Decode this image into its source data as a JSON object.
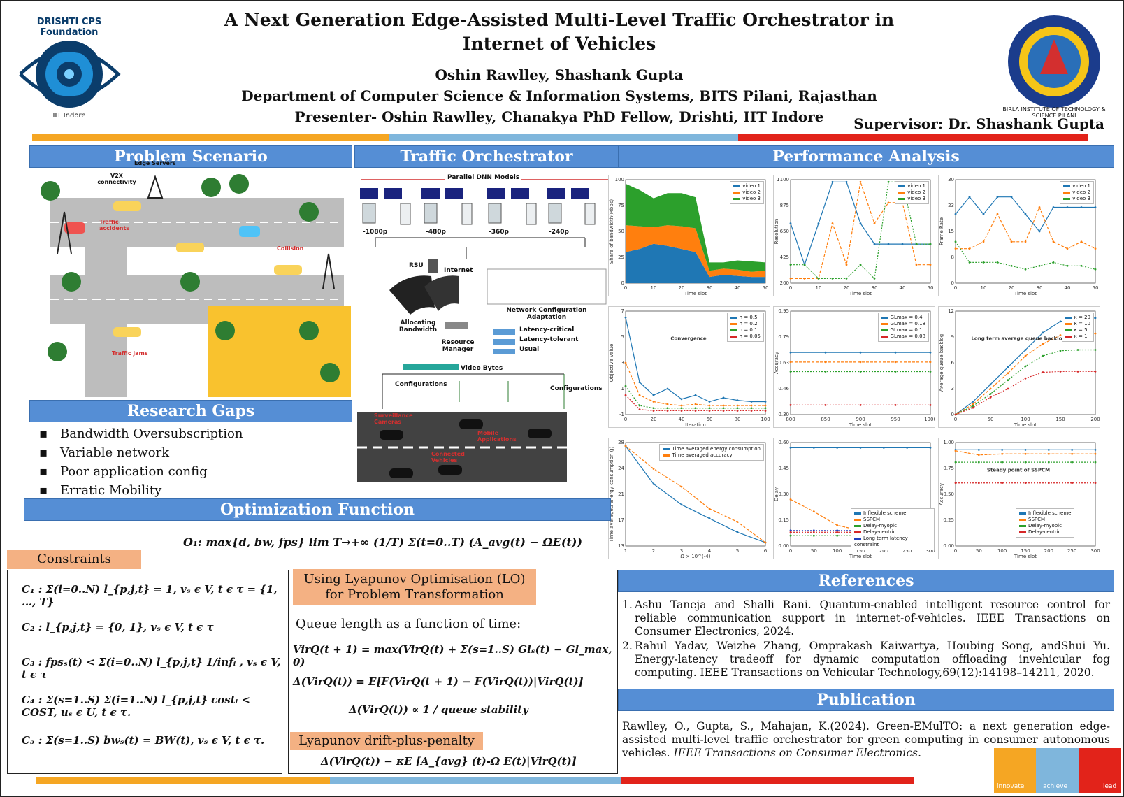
{
  "header": {
    "title_line1": "A Next Generation Edge-Assisted Multi-Level Traffic Orchestrator in",
    "title_line2": "Internet of Vehicles",
    "authors": "Oshin Rawlley, Shashank Gupta",
    "department": "Department of Computer Science & Information Systems, BITS Pilani, Rajasthan",
    "presenter": "Presenter- Oshin Rawlley, Chanakya PhD Fellow, Drishti, IIT Indore",
    "supervisor": "Supervisor: Dr. Shashank Gupta",
    "logo_left_text": "DRISHTI CPS Foundation",
    "logo_left_sub": "IIT Indore",
    "logo_right_text": "BIRLA INSTITUTE OF TECHNOLOGY & SCIENCE PILANI"
  },
  "colors": {
    "orange": "#f5a623",
    "blue": "#7fb6dc",
    "red": "#e2231a",
    "header_blue": "#558ed5"
  },
  "problem": {
    "heading": "Problem Scenario",
    "labels": {
      "edge": "Edge Servers",
      "v2x": "V2X connectivity",
      "accidents": "Traffic accidents",
      "collision": "Collision",
      "jams": "Traffic jams"
    }
  },
  "orchestrator": {
    "heading": "Traffic Orchestrator",
    "parallel": "Parallel DNN Models",
    "res": [
      "-1080p",
      "-480p",
      "-360p",
      "-240p"
    ],
    "rsu": "RSU",
    "internet": "Internet",
    "alloc": "Allocating Bandwidth",
    "netconf": "Network Configuration Adaptation",
    "resmgr": "Resource Manager",
    "classes": [
      "Latency-critical",
      "Latency-tolerant",
      "Usual"
    ],
    "videobytes": "Video Bytes",
    "configs": "Configurations",
    "configs2": "Configurations",
    "cams": "Surveillance Cameras",
    "apps": "Mobile Applications",
    "vehicles": "Connected Vehicles"
  },
  "gaps": {
    "heading": "Research Gaps",
    "items": [
      "Bandwidth Oversubscription",
      "Variable network",
      "Poor application config",
      "Erratic Mobility"
    ]
  },
  "optimization": {
    "heading": "Optimization Function",
    "objective": "O₁: max{d, bw, fps} lim T→+∞ (1/T) Σ(t=0..T) (A_avg(t) − ΩE(t))",
    "constraints_label": "Constraints",
    "constraints": [
      "C₁ : Σ(i=0..N) l_{p,j,t} = 1, vₛ ϵ V, t ϵ τ = {1, …, T}",
      "C₂ : l_{p,j,t} = {0, 1}, vₛ ϵ V, t ϵ τ",
      "C₃ : fpsₛ(t) < Σ(i=0..N) l_{p,j,t} 1/infᵢ , vₛ ϵ V, t ϵ τ",
      "C₄ : Σ(s=1..S) Σ(i=1..N) l_{p,j,t} costᵢ < COST, uₛ ϵ U, t ϵ τ.",
      "C₅ : Σ(s=1..S) bwₛ(t) = BW(t), vₛ ϵ V, t ϵ τ."
    ],
    "lyap_label": "Using Lyapunov Optimisation (LO) for Problem Transformation",
    "queue_text": "Queue length as a function of time:",
    "eq1": "VirQ(t + 1) = max(VirQ(t) + Σ(s=1..S) Glₛ(t) − Gl_max, 0)",
    "eq2": "Δ(VirQ(t)) = E[F(VirQ(t + 1) − F(VirQ(t))|VirQ(t)]",
    "eq3": "Δ(VirQ(t)) ∝ 1 / queue stability",
    "dpp_label": "Lyapunov drift-plus-penalty",
    "eq4": "Δ(VirQ(t)) − κE [A_{avg} (t)-Ω E(t)|VirQ(t)]"
  },
  "performance": {
    "heading": "Performance Analysis"
  },
  "chart_data": [
    {
      "type": "area",
      "xlabel": "Time slot",
      "ylabel": "Share of bandwidth(Mbps)",
      "ylim": [
        0,
        100
      ],
      "x": [
        0,
        5,
        10,
        15,
        20,
        25,
        30,
        35,
        40,
        45,
        50
      ],
      "series": [
        {
          "name": "video 1",
          "values": [
            30,
            33,
            38,
            36,
            33,
            30,
            6,
            8,
            7,
            6,
            6
          ]
        },
        {
          "name": "video 2",
          "values": [
            26,
            22,
            16,
            20,
            22,
            23,
            6,
            6,
            6,
            5,
            6
          ]
        },
        {
          "name": "video 3",
          "values": [
            40,
            35,
            28,
            31,
            32,
            30,
            8,
            6,
            9,
            10,
            8
          ]
        }
      ]
    },
    {
      "type": "line",
      "xlabel": "Time slot",
      "ylabel": "Resolution",
      "ylim": [
        200,
        1100
      ],
      "x": [
        0,
        5,
        10,
        15,
        20,
        25,
        30,
        35,
        40,
        45,
        50
      ],
      "series": [
        {
          "name": "video 1",
          "values": [
            720,
            360,
            720,
            1080,
            1080,
            720,
            540,
            540,
            540,
            540,
            540
          ]
        },
        {
          "name": "video 2",
          "values": [
            240,
            240,
            240,
            720,
            360,
            1080,
            720,
            900,
            900,
            360,
            360
          ]
        },
        {
          "name": "video 3",
          "values": [
            360,
            360,
            240,
            240,
            240,
            360,
            240,
            1080,
            1080,
            540,
            540
          ]
        }
      ]
    },
    {
      "type": "line",
      "xlabel": "Time slot",
      "ylabel": "Frame Rate",
      "ylim": [
        0,
        30
      ],
      "x": [
        0,
        5,
        10,
        15,
        20,
        25,
        30,
        35,
        40,
        45,
        50
      ],
      "series": [
        {
          "name": "video 1",
          "values": [
            20,
            25,
            20,
            25,
            25,
            20,
            15,
            22,
            22,
            22,
            22
          ]
        },
        {
          "name": "video 2",
          "values": [
            10,
            10,
            12,
            20,
            12,
            12,
            22,
            12,
            10,
            12,
            10
          ]
        },
        {
          "name": "video 3",
          "values": [
            12,
            6,
            6,
            6,
            5,
            4,
            5,
            6,
            5,
            5,
            4
          ]
        }
      ]
    },
    {
      "type": "line",
      "xlabel": "Iteration",
      "ylabel": "Objective value",
      "ylim": [
        -1,
        7
      ],
      "annotation": "Convergence",
      "x": [
        0,
        10,
        20,
        30,
        40,
        50,
        60,
        70,
        80,
        90,
        100
      ],
      "series": [
        {
          "name": "h = 0.5",
          "values": [
            6.5,
            1.5,
            0.5,
            1.0,
            0.2,
            0.5,
            0.0,
            0.3,
            0.1,
            0.0,
            0.0
          ]
        },
        {
          "name": "h = 0.2",
          "values": [
            3.0,
            0.5,
            0.0,
            -0.2,
            -0.3,
            -0.2,
            -0.3,
            -0.3,
            -0.3,
            -0.3,
            -0.3
          ]
        },
        {
          "name": "h = 0.1",
          "values": [
            1.2,
            -0.3,
            -0.5,
            -0.5,
            -0.5,
            -0.5,
            -0.5,
            -0.5,
            -0.5,
            -0.5,
            -0.5
          ]
        },
        {
          "name": "h = 0.05",
          "values": [
            0.5,
            -0.6,
            -0.7,
            -0.7,
            -0.7,
            -0.7,
            -0.7,
            -0.7,
            -0.7,
            -0.7,
            -0.7
          ]
        }
      ]
    },
    {
      "type": "line",
      "xlabel": "Time slot",
      "ylabel": "Accuracy",
      "ylim": [
        0.3,
        0.95
      ],
      "x": [
        800,
        850,
        900,
        950,
        1000
      ],
      "series": [
        {
          "name": "GLmax = 0.4",
          "values": [
            0.69,
            0.69,
            0.69,
            0.69,
            0.69
          ]
        },
        {
          "name": "GLmax = 0.18",
          "values": [
            0.63,
            0.63,
            0.63,
            0.63,
            0.63
          ]
        },
        {
          "name": "GLmax = 0.1",
          "values": [
            0.57,
            0.57,
            0.57,
            0.57,
            0.57
          ]
        },
        {
          "name": "GLmax = 0.08",
          "values": [
            0.36,
            0.36,
            0.36,
            0.36,
            0.36
          ]
        }
      ]
    },
    {
      "type": "line",
      "xlabel": "Time slot",
      "ylabel": "Average queue backlog",
      "ylim": [
        0,
        12
      ],
      "annotation": "Long term average queue backlog",
      "x": [
        0,
        25,
        50,
        75,
        100,
        125,
        150,
        175,
        200
      ],
      "series": [
        {
          "name": "κ = 20",
          "values": [
            0,
            1.5,
            3.5,
            5.5,
            7.5,
            9.5,
            10.8,
            11.1,
            11.2
          ]
        },
        {
          "name": "κ = 10",
          "values": [
            0,
            1.2,
            3.0,
            4.8,
            6.8,
            8.2,
            9.2,
            9.4,
            9.4
          ]
        },
        {
          "name": "κ = 5",
          "values": [
            0,
            1.0,
            2.4,
            4.0,
            5.6,
            6.8,
            7.4,
            7.5,
            7.5
          ]
        },
        {
          "name": "κ = 1",
          "values": [
            0,
            0.8,
            2.0,
            3.0,
            4.2,
            4.9,
            5.0,
            5.0,
            5.0
          ]
        }
      ]
    },
    {
      "type": "line",
      "xlabel": "Ω × 10^(-4)",
      "ylabel": "Time averaged energy consumption (J)",
      "ylim": [
        13,
        28
      ],
      "x": [
        1,
        2,
        3,
        4,
        5,
        6
      ],
      "series": [
        {
          "name": "Time averaged energy consumption",
          "values": [
            27.5,
            22.0,
            19.0,
            17.0,
            15.0,
            13.5
          ]
        },
        {
          "name": "Time averaged accuracy",
          "values": [
            27.5,
            24.2,
            21.6,
            18.4,
            16.5,
            13.5
          ]
        }
      ]
    },
    {
      "type": "line",
      "xlabel": "Time slot",
      "ylabel": "Delay",
      "ylim": [
        0,
        0.6
      ],
      "x": [
        0,
        50,
        100,
        150,
        200,
        250,
        300
      ],
      "series": [
        {
          "name": "Inflexible scheme",
          "values": [
            0.57,
            0.57,
            0.57,
            0.57,
            0.57,
            0.57,
            0.57
          ]
        },
        {
          "name": "SSPCM",
          "values": [
            0.27,
            0.2,
            0.12,
            0.09,
            0.09,
            0.09,
            0.09
          ]
        },
        {
          "name": "Delay-myopic",
          "values": [
            0.06,
            0.06,
            0.06,
            0.06,
            0.06,
            0.06,
            0.06
          ]
        },
        {
          "name": "Delay-centric",
          "values": [
            0.08,
            0.08,
            0.08,
            0.08,
            0.08,
            0.08,
            0.08
          ]
        },
        {
          "name": "Long term latency constraint",
          "values": [
            0.09,
            0.09,
            0.09,
            0.09,
            0.09,
            0.09,
            0.09
          ]
        }
      ]
    },
    {
      "type": "line",
      "xlabel": "Time slot",
      "ylabel": "Accuracy",
      "ylim": [
        0,
        1.0
      ],
      "annotation": "Steady point of SSPCM",
      "x": [
        0,
        50,
        100,
        150,
        200,
        250,
        300
      ],
      "series": [
        {
          "name": "Inflexible scheme",
          "values": [
            0.93,
            0.93,
            0.93,
            0.93,
            0.93,
            0.93,
            0.93
          ]
        },
        {
          "name": "SSPCM",
          "values": [
            0.92,
            0.88,
            0.89,
            0.89,
            0.89,
            0.89,
            0.89
          ]
        },
        {
          "name": "Delay-myopic",
          "values": [
            0.81,
            0.81,
            0.81,
            0.81,
            0.81,
            0.81,
            0.81
          ]
        },
        {
          "name": "Delay-centric",
          "values": [
            0.61,
            0.61,
            0.61,
            0.61,
            0.61,
            0.61,
            0.61
          ]
        }
      ]
    }
  ],
  "references": {
    "heading": "References",
    "items": [
      "Ashu Taneja and Shalli Rani. Quantum-enabled intelligent resource control for reliable communication support in internet-of-vehicles. IEEE Transactions on Consumer Electronics, 2024.",
      "Rahul Yadav, Weizhe Zhang, Omprakash Kaiwartya, Houbing Song, andShui Yu. Energy-latency tradeoff for dynamic computation offloading invehicular fog computing. IEEE Transactions on Vehicular Technology,69(12):14198–14211, 2020."
    ]
  },
  "publication": {
    "heading": "Publication",
    "text": "Rawlley, O., Gupta, S., Mahajan, K.(2024). Green-EMulTO: a next generation edge-assisted multi-level traffic orchestrator for green computing in consumer autonomous vehicles.",
    "journal": "IEEE Transactions on Consumer Electronics."
  },
  "footer_logo": [
    "innovate",
    "achieve",
    "lead"
  ]
}
